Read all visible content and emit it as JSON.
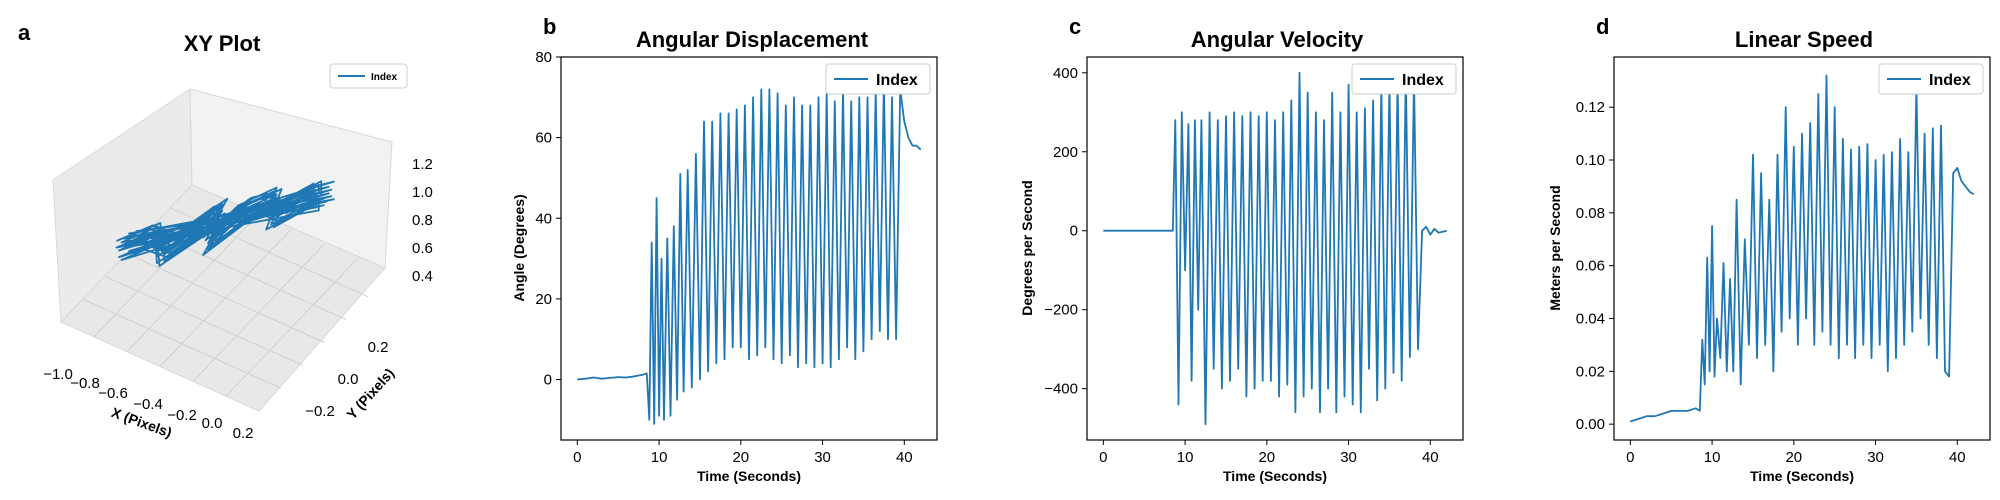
{
  "colors": {
    "series": "#1f77b4",
    "pane": "#f0f0f0",
    "pane_side": "#e6e6e6",
    "pane_floor": "#ebebeb",
    "grid3d": "#cccccc"
  },
  "chart_data": [
    {
      "panel": "a",
      "type": "line",
      "projection": "3d",
      "title": "XY Plot",
      "xlabel": "X (Pixels)",
      "ylabel": "Y (Pixels)",
      "zlabel": "",
      "xticks": [
        "−1.0",
        "−0.8",
        "−0.6",
        "−0.4",
        "−0.2",
        "0.0",
        "0.2"
      ],
      "yticks": [
        "−0.2",
        "0.0",
        "0.2"
      ],
      "zticks": [
        "0.4",
        "0.6",
        "0.8",
        "1.0",
        "1.2"
      ],
      "xlim": [
        -1.05,
        0.3
      ],
      "ylim": [
        -0.3,
        0.3
      ],
      "zlim": [
        0.3,
        1.3
      ],
      "legend": "upper right",
      "series": [
        {
          "name": "Index",
          "x": [
            -1.05,
            -0.9,
            -0.7,
            -0.55,
            -0.4,
            -0.3,
            -0.15,
            0.0,
            0.15,
            0.28
          ],
          "y": [
            0.0,
            0.02,
            -0.05,
            0.08,
            -0.04,
            0.03,
            0.06,
            -0.02,
            0.04,
            0.01
          ],
          "z": [
            0.35,
            0.45,
            0.55,
            0.65,
            0.75,
            0.85,
            0.95,
            1.05,
            1.15,
            1.25
          ]
        }
      ]
    },
    {
      "panel": "b",
      "type": "line",
      "title": "Angular Displacement",
      "xlabel": "Time (Seconds)",
      "ylabel": "Angle (Degrees)",
      "xlim": [
        -2,
        44
      ],
      "ylim": [
        -15,
        80
      ],
      "xticks": [
        0,
        10,
        20,
        30,
        40
      ],
      "yticks": [
        0,
        20,
        40,
        60,
        80
      ],
      "legend": "upper right",
      "series": [
        {
          "name": "Index",
          "x": [
            0,
            1,
            2,
            3,
            4,
            5,
            6,
            7,
            8,
            8.5,
            8.8,
            9.1,
            9.4,
            9.7,
            10.0,
            10.3,
            10.6,
            11.0,
            11.4,
            11.8,
            12.2,
            12.6,
            13.0,
            13.5,
            14.0,
            14.5,
            15.0,
            15.5,
            16.0,
            16.5,
            17.0,
            17.5,
            18.0,
            18.5,
            19.0,
            19.5,
            20.0,
            20.5,
            21.0,
            21.5,
            22.0,
            22.5,
            23.0,
            23.5,
            24.0,
            24.5,
            25.0,
            25.5,
            26.0,
            26.5,
            27.0,
            27.5,
            28.0,
            28.5,
            29.0,
            29.5,
            30.0,
            30.5,
            31.0,
            31.5,
            32.0,
            32.5,
            33.0,
            33.5,
            34.0,
            34.5,
            35.0,
            35.5,
            36.0,
            36.5,
            37.0,
            37.5,
            38.0,
            38.5,
            39.0,
            39.5,
            40.0,
            40.5,
            41.0,
            41.5,
            42.0
          ],
          "y": [
            0,
            0.2,
            0.5,
            0.2,
            0.4,
            0.6,
            0.5,
            0.8,
            1.2,
            1.5,
            -10,
            34,
            -11,
            45,
            -9,
            30,
            -10,
            35,
            -9,
            38,
            -5,
            51,
            -3,
            52,
            -2,
            56,
            0,
            64,
            2,
            64,
            4,
            66,
            5,
            66,
            8,
            67,
            8,
            68,
            5,
            70,
            6,
            72,
            8,
            72,
            5,
            71,
            4,
            68,
            6,
            70,
            3,
            68,
            4,
            68,
            3,
            70,
            4,
            71,
            3,
            69,
            5,
            72,
            8,
            69,
            5,
            70,
            7,
            70,
            10,
            72,
            12,
            74,
            10,
            70,
            10,
            72,
            64,
            60,
            58,
            58,
            57
          ]
        }
      ]
    },
    {
      "panel": "c",
      "type": "line",
      "title": "Angular Velocity",
      "xlabel": "Time (Seconds)",
      "ylabel": "Degrees per Second",
      "xlim": [
        -2,
        44
      ],
      "ylim": [
        -530,
        440
      ],
      "xticks": [
        0,
        10,
        20,
        30,
        40
      ],
      "yticks": [
        -400,
        -200,
        0,
        200,
        400
      ],
      "legend": "upper right",
      "series": [
        {
          "name": "Index",
          "x": [
            0,
            2,
            4,
            6,
            8,
            8.5,
            8.8,
            9.2,
            9.6,
            10.0,
            10.4,
            10.8,
            11.2,
            11.6,
            12.0,
            12.5,
            13.0,
            13.5,
            14.0,
            14.5,
            15.0,
            15.5,
            16.0,
            16.5,
            17.0,
            17.5,
            18.0,
            18.5,
            19.0,
            19.5,
            20.0,
            20.5,
            21.0,
            21.5,
            22.0,
            22.5,
            23.0,
            23.5,
            24.0,
            24.5,
            25.0,
            25.5,
            26.0,
            26.5,
            27.0,
            27.5,
            28.0,
            28.5,
            29.0,
            29.5,
            30.0,
            30.5,
            31.0,
            31.5,
            32.0,
            32.5,
            33.0,
            33.5,
            34.0,
            34.5,
            35.0,
            35.5,
            36.0,
            36.5,
            37.0,
            37.5,
            38.0,
            38.5,
            39.0,
            39.5,
            40.0,
            40.5,
            41.0,
            42.0
          ],
          "y": [
            0,
            0,
            0,
            0,
            0,
            0,
            280,
            -440,
            300,
            -100,
            270,
            -380,
            280,
            -200,
            280,
            -490,
            300,
            -350,
            280,
            -400,
            290,
            -380,
            300,
            -350,
            290,
            -420,
            300,
            -400,
            290,
            -380,
            300,
            -380,
            280,
            -420,
            300,
            -390,
            330,
            -460,
            400,
            -420,
            350,
            -400,
            300,
            -460,
            280,
            -400,
            350,
            -460,
            300,
            -420,
            370,
            -440,
            300,
            -460,
            310,
            -350,
            330,
            -430,
            370,
            -400,
            380,
            -360,
            380,
            -380,
            400,
            -320,
            390,
            -300,
            0,
            10,
            -10,
            5,
            -5,
            0
          ]
        }
      ]
    },
    {
      "panel": "d",
      "type": "line",
      "title": "Linear Speed",
      "xlabel": "Time (Seconds)",
      "ylabel": "Meters per Second",
      "xlim": [
        -2,
        44
      ],
      "ylim": [
        -0.006,
        0.139
      ],
      "xticks": [
        0,
        10,
        20,
        30,
        40
      ],
      "yticks": [
        "0.00",
        "0.02",
        "0.04",
        "0.06",
        "0.08",
        "0.10",
        "0.12"
      ],
      "legend": "upper right",
      "series": [
        {
          "name": "Index",
          "x": [
            0,
            1,
            2,
            3,
            4,
            5,
            6,
            7,
            8,
            8.5,
            8.8,
            9.1,
            9.4,
            9.7,
            10.0,
            10.3,
            10.6,
            11.0,
            11.4,
            11.8,
            12.2,
            12.6,
            13.0,
            13.5,
            14.0,
            14.5,
            15.0,
            15.5,
            16.0,
            16.5,
            17.0,
            17.5,
            18.0,
            18.5,
            19.0,
            19.5,
            20.0,
            20.5,
            21.0,
            21.5,
            22.0,
            22.5,
            23.0,
            23.5,
            24.0,
            24.5,
            25.0,
            25.5,
            26.0,
            26.5,
            27.0,
            27.5,
            28.0,
            28.5,
            29.0,
            29.5,
            30.0,
            30.5,
            31.0,
            31.5,
            32.0,
            32.5,
            33.0,
            33.5,
            34.0,
            34.5,
            35.0,
            35.5,
            36.0,
            36.5,
            37.0,
            37.5,
            38.0,
            38.5,
            39.0,
            39.5,
            40.0,
            40.5,
            41.0,
            41.5,
            42.0
          ],
          "y": [
            0.001,
            0.002,
            0.003,
            0.003,
            0.004,
            0.005,
            0.005,
            0.005,
            0.006,
            0.005,
            0.032,
            0.015,
            0.063,
            0.02,
            0.075,
            0.018,
            0.04,
            0.025,
            0.061,
            0.02,
            0.055,
            0.02,
            0.085,
            0.015,
            0.07,
            0.03,
            0.102,
            0.025,
            0.095,
            0.03,
            0.085,
            0.02,
            0.102,
            0.035,
            0.12,
            0.04,
            0.105,
            0.03,
            0.11,
            0.04,
            0.114,
            0.03,
            0.125,
            0.035,
            0.132,
            0.03,
            0.12,
            0.025,
            0.108,
            0.03,
            0.104,
            0.025,
            0.105,
            0.03,
            0.106,
            0.025,
            0.1,
            0.03,
            0.102,
            0.02,
            0.103,
            0.025,
            0.108,
            0.03,
            0.103,
            0.035,
            0.128,
            0.04,
            0.11,
            0.03,
            0.112,
            0.025,
            0.113,
            0.02,
            0.018,
            0.095,
            0.097,
            0.092,
            0.09,
            0.088,
            0.087
          ]
        }
      ]
    }
  ]
}
